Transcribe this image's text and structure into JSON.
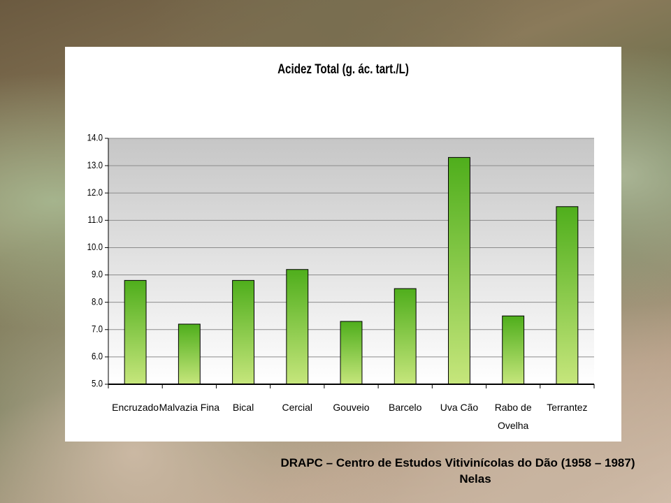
{
  "chart_data": {
    "type": "bar",
    "title": "Acidez Total (g. ác. tart./L)",
    "categories": [
      "Encruzado",
      "Malvazia Fina",
      "Bical",
      "Cercial",
      "Gouveio",
      "Barcelo",
      "Uva Cão",
      "Rabo de Ovelha",
      "Terrantez"
    ],
    "values": [
      8.8,
      7.2,
      8.8,
      9.2,
      7.3,
      8.5,
      13.3,
      7.5,
      11.5
    ],
    "color": "#5cb52a",
    "ylim": [
      5,
      14
    ],
    "yticks": [
      {
        "value": 5,
        "label": "5.0"
      },
      {
        "value": 6,
        "label": "6.0"
      },
      {
        "value": 7,
        "label": "7.0"
      },
      {
        "value": 8,
        "label": "8.0"
      },
      {
        "value": 9,
        "label": "9.0"
      },
      {
        "value": 10,
        "label": "10.0"
      },
      {
        "value": 11,
        "label": "11.0"
      },
      {
        "value": 12,
        "label": "12.0"
      },
      {
        "value": 13,
        "label": "13.0"
      },
      {
        "value": 14,
        "label": "14.0"
      }
    ],
    "grid": true
  },
  "footer": {
    "line1": "DRAPC – Centro de Estudos Vitivinícolas do Dão (1958 – 1987)",
    "line2": "Nelas"
  }
}
